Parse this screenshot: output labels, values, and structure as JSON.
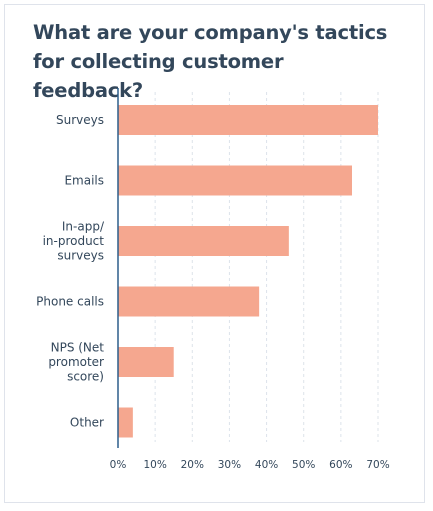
{
  "chart_data": {
    "type": "bar",
    "orientation": "horizontal",
    "title": "What are your company's tactics for collecting customer feedback?",
    "categories": [
      [
        "Surveys"
      ],
      [
        "Emails"
      ],
      [
        "In-app/",
        "in-product",
        "surveys"
      ],
      [
        "Phone calls"
      ],
      [
        "NPS (Net",
        "promoter",
        "score)"
      ],
      [
        "Other"
      ]
    ],
    "values": [
      70,
      63,
      46,
      38,
      15,
      4
    ],
    "xlim": [
      0,
      70
    ],
    "xticks": [
      0,
      10,
      20,
      30,
      40,
      50,
      60,
      70
    ],
    "xtick_labels": [
      "0%",
      "10%",
      "20%",
      "30%",
      "40%",
      "50%",
      "60%",
      "70%"
    ],
    "grid": "vertical dashed",
    "bar_color": "#f5a78f",
    "axis_color": "#2d5f8b"
  }
}
